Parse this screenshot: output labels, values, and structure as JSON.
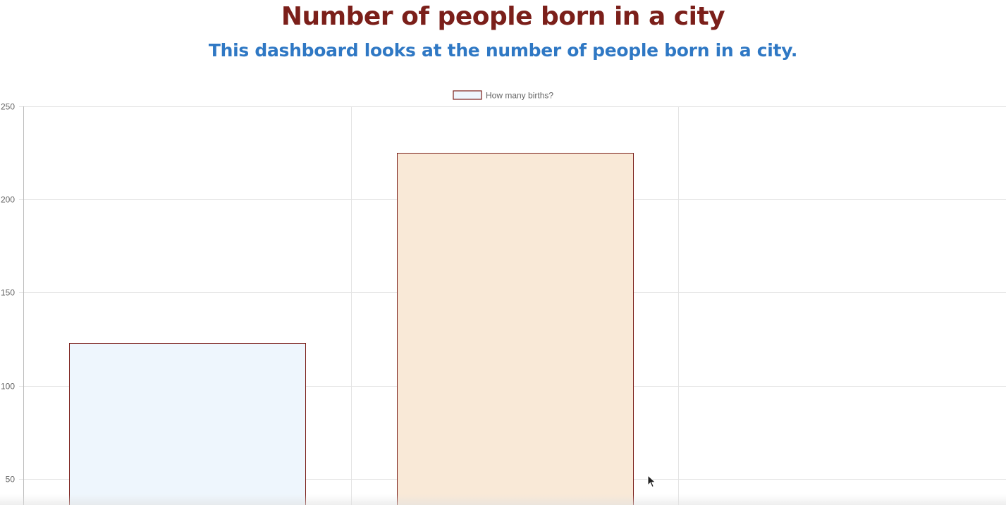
{
  "header": {
    "title": "Number of people born in a city",
    "subtitle": "This dashboard looks at the number of people born in a city."
  },
  "chart_data": {
    "type": "bar",
    "categories": [
      "",
      "",
      ""
    ],
    "series": [
      {
        "name": "How many births?",
        "values": [
          123,
          225,
          null
        ],
        "fill_colors": [
          "#eef6fd",
          "#f9e9d7"
        ],
        "border_color": "#7b1f1a"
      }
    ],
    "yticks": [
      50,
      100,
      150,
      200,
      250
    ],
    "ylim": [
      36,
      250
    ],
    "grid": true,
    "legend_position": "top-center"
  },
  "colors": {
    "title": "#7b1f1a",
    "subtitle": "#2f78c4",
    "grid": "#e3e3e3",
    "tick_text": "#666666"
  }
}
